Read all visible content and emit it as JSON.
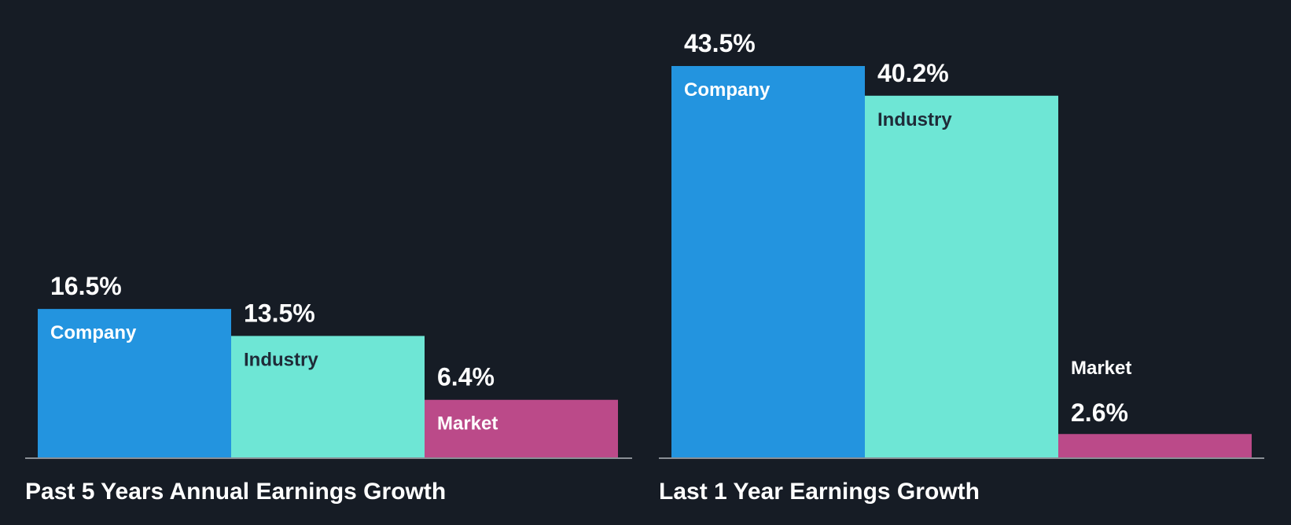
{
  "colors": {
    "background": "#161c25",
    "company": "#2394df",
    "industry": "#6ee6d5",
    "market": "#bb4a89",
    "axis": "#8a8f96",
    "label_on_light": "#1f2b38",
    "label_on_dark": "#ffffff"
  },
  "chart_data": [
    {
      "type": "bar",
      "title": "Past 5 Years Annual Earnings Growth",
      "categories": [
        "Company",
        "Industry",
        "Market"
      ],
      "values": [
        16.5,
        13.5,
        6.4
      ],
      "value_labels": [
        "16.5%",
        "13.5%",
        "6.4%"
      ],
      "unit": "%",
      "ylim": [
        0,
        43.5
      ],
      "grid": false,
      "legend": "none"
    },
    {
      "type": "bar",
      "title": "Last 1 Year Earnings Growth",
      "categories": [
        "Company",
        "Industry",
        "Market"
      ],
      "values": [
        43.5,
        40.2,
        2.6
      ],
      "value_labels": [
        "43.5%",
        "40.2%",
        "2.6%"
      ],
      "unit": "%",
      "ylim": [
        0,
        43.5
      ],
      "grid": false,
      "legend": "none"
    }
  ]
}
